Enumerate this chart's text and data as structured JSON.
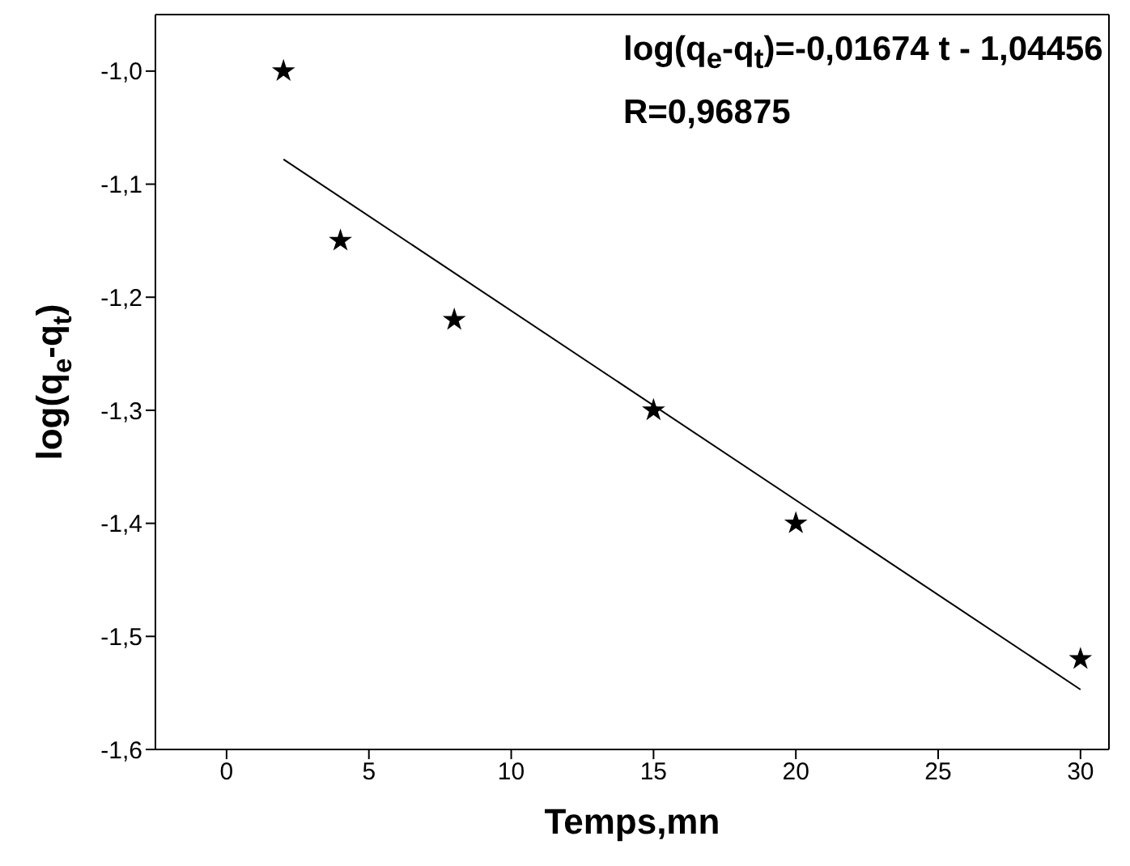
{
  "chart_data": {
    "type": "scatter",
    "xlabel": "Temps,mn",
    "ylabel": "log(q$_{e}$-q$_{t}$)",
    "annotations": [
      "log(q$_{e}$-q$_{t}$)=-0,01674 t - 1,04456",
      "R=0,96875"
    ],
    "series": [
      {
        "color": "#000000",
        "marker": "star",
        "x": [
          2,
          4,
          8,
          15,
          20,
          30
        ],
        "values": [
          -1.0,
          -1.15,
          -1.22,
          -1.3,
          -1.4,
          -1.52
        ]
      },
      {
        "type": "line",
        "color": "#000000",
        "marker": "none",
        "x": [
          2,
          30
        ],
        "values": [
          -1.078,
          -1.547
        ]
      }
    ],
    "xlim": [
      -2.5,
      31
    ],
    "xticks": [
      0,
      5,
      10,
      15,
      20,
      25,
      30
    ],
    "ylim": [
      -1.6,
      -0.95
    ],
    "yticks": [
      {
        "value": -1.6,
        "label": "-1,6"
      },
      {
        "value": -1.5,
        "label": "-1,5"
      },
      {
        "value": -1.4,
        "label": "-1,4"
      },
      {
        "value": -1.3,
        "label": "-1,3"
      },
      {
        "value": -1.2,
        "label": "-1,2"
      },
      {
        "value": -1.1,
        "label": "-1,1"
      },
      {
        "value": -1.0,
        "label": "-1,0"
      }
    ],
    "legend": false
  }
}
